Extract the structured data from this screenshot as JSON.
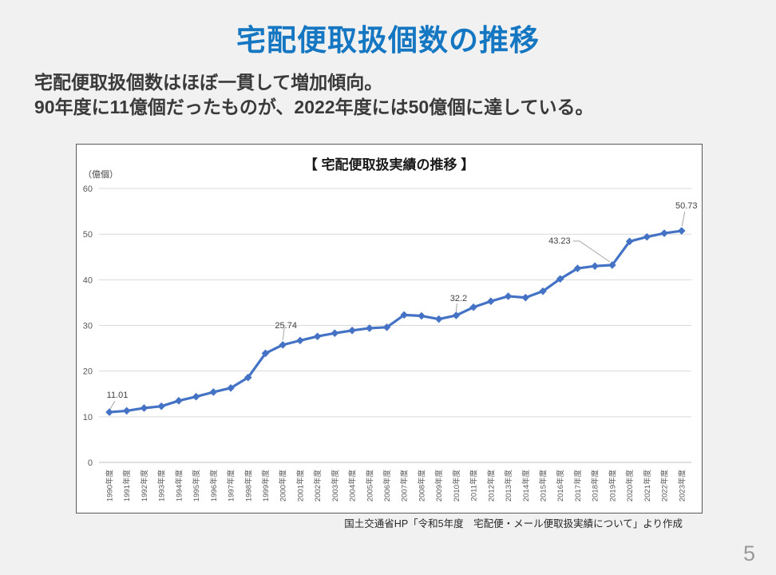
{
  "slide": {
    "title": "宅配便取扱個数の推移",
    "body_lines": [
      "宅配便取扱個数はほぼ一貫して増加傾向。",
      "90年度に11億個だったものが、2022年度には50億個に達している。"
    ],
    "source_note": "国土交通省HP「令和5年度　宅配便・メール便取扱実績について」より作成",
    "page_number": "5"
  },
  "colors": {
    "title_blue": "#1577c2",
    "line_blue": "#4472c4",
    "grid": "#d9d9d9",
    "axis_line": "#bfbfbf",
    "tick_text": "#595959",
    "data_label": "#404040",
    "leader_line": "#a6a6a6"
  },
  "chart_data": {
    "type": "line",
    "title": "【 宅配便取扱実績の推移 】",
    "unit_label": "（億個）",
    "legend": "none",
    "grid": "horizontal",
    "marker": "diamond",
    "ylim": [
      0,
      60
    ],
    "yticks": [
      0,
      10,
      20,
      30,
      40,
      50,
      60
    ],
    "categories": [
      "1990年度",
      "1991年度",
      "1992年度",
      "1993年度",
      "1994年度",
      "1995年度",
      "1996年度",
      "1997年度",
      "1998年度",
      "1999年度",
      "2000年度",
      "2001年度",
      "2002年度",
      "2003年度",
      "2004年度",
      "2005年度",
      "2006年度",
      "2007年度",
      "2008年度",
      "2009年度",
      "2010年度",
      "2011年度",
      "2012年度",
      "2013年度",
      "2014年度",
      "2015年度",
      "2016年度",
      "2017年度",
      "2018年度",
      "2019年度",
      "2020年度",
      "2021年度",
      "2022年度",
      "2023年度"
    ],
    "values": [
      11.01,
      11.3,
      11.9,
      12.3,
      13.5,
      14.4,
      15.4,
      16.3,
      18.6,
      23.9,
      25.74,
      26.7,
      27.6,
      28.3,
      28.9,
      29.4,
      29.6,
      32.3,
      32.1,
      31.4,
      32.2,
      34.0,
      35.3,
      36.4,
      36.1,
      37.5,
      40.2,
      42.5,
      43.0,
      43.23,
      48.4,
      49.4,
      50.2,
      50.73
    ],
    "annotations": [
      {
        "index": 0,
        "text": "11.01"
      },
      {
        "index": 10,
        "text": "25.74"
      },
      {
        "index": 20,
        "text": "32.2"
      },
      {
        "index": 29,
        "text": "43.23"
      },
      {
        "index": 33,
        "text": "50.73"
      }
    ]
  }
}
